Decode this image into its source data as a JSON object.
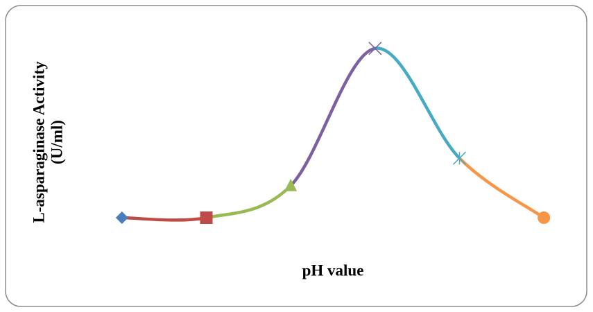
{
  "chart_data": {
    "type": "line",
    "xlabel": "pH value",
    "ylabel_lines": [
      "L-asparaginase Activity",
      "(U/ml)"
    ],
    "categories": [
      null,
      null,
      null,
      null,
      null,
      null
    ],
    "values": [
      1,
      1,
      1.7,
      4.7,
      2.3,
      1
    ],
    "colors": [
      "#4a7ebb",
      "#be4b48",
      "#98b954",
      "#7d60a0",
      "#46aac5",
      "#f79646"
    ],
    "markers": [
      "diamond",
      "square",
      "triangle",
      "x",
      "star",
      "circle"
    ],
    "ylim": [
      0,
      5
    ],
    "smooth": true
  }
}
